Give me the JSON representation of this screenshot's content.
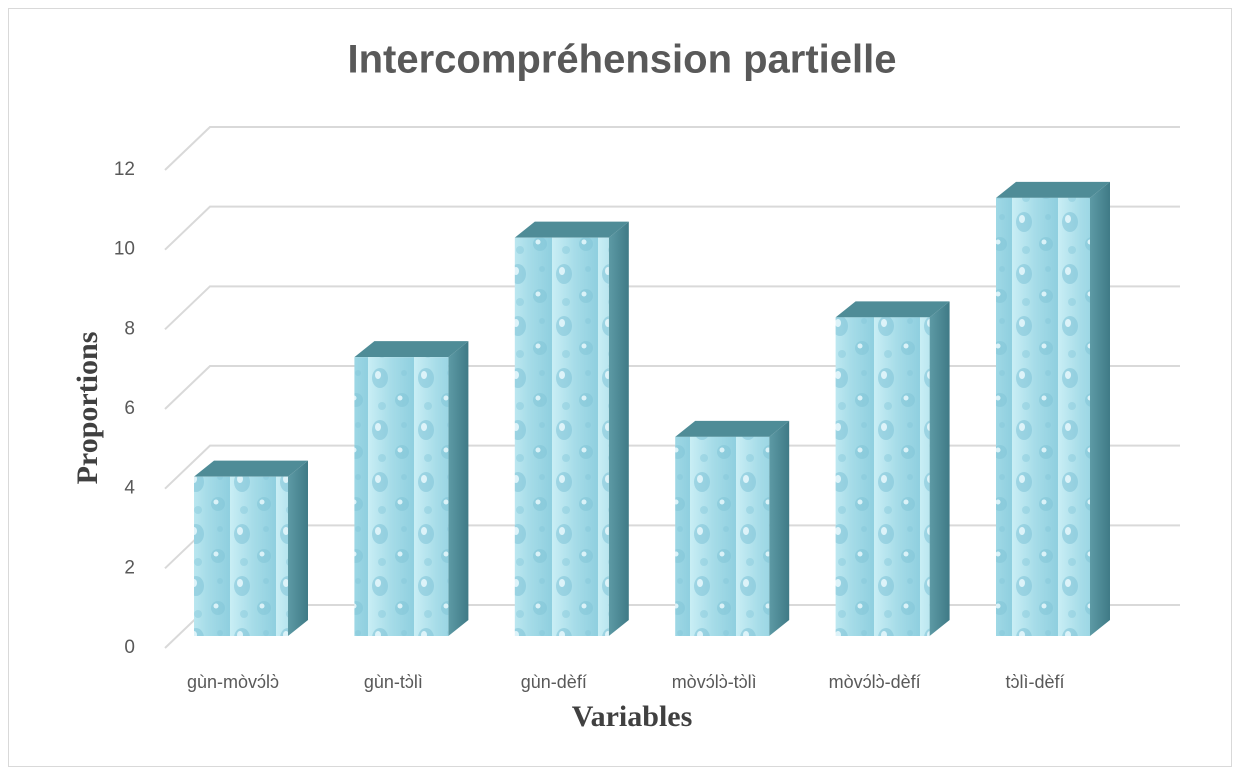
{
  "chart_data": {
    "type": "bar3d",
    "title": "Intercompréhension partielle",
    "categories": [
      "gùn-mòvɔ́lɔ̀",
      "gùn-tɔ̀lì",
      "gùn-dèfí",
      "mòvɔ́lɔ̀-tɔ̀lì",
      "mòvɔ́lɔ̀-dèfí",
      "tɔ̀lì-dèfí"
    ],
    "values": [
      4,
      7,
      10,
      5,
      8,
      11
    ],
    "color": "#a9dbe6",
    "xlabel": "Variables",
    "ylabel": "Proportions",
    "ylim": [
      0,
      12
    ],
    "yticks": [
      0,
      2,
      4,
      6,
      8,
      10,
      12
    ],
    "grid": true
  }
}
